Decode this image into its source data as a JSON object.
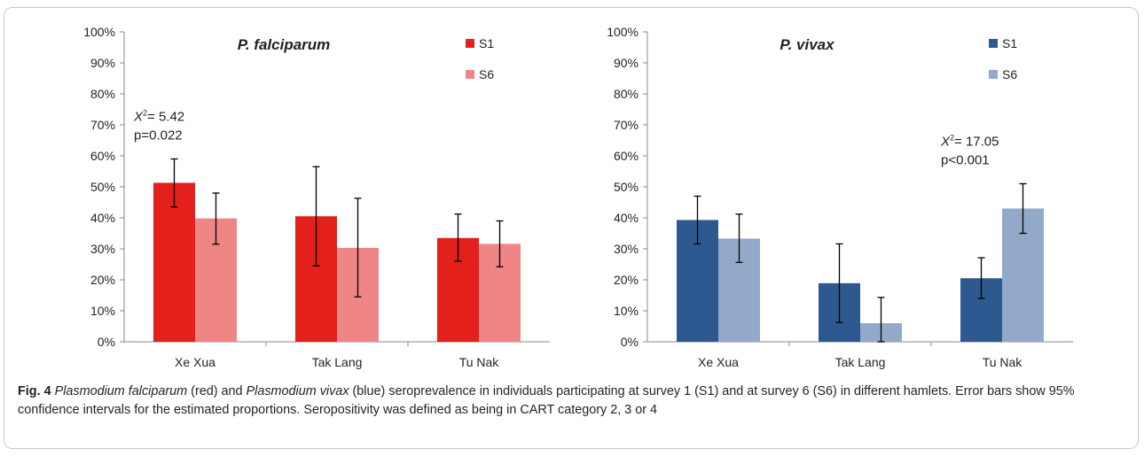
{
  "chart_data": [
    {
      "type": "bar",
      "title": "P. falciparum",
      "categories": [
        "Xe Xua",
        "Tak Lang",
        "Tu Nak"
      ],
      "yticks": [
        "0%",
        "10%",
        "20%",
        "30%",
        "40%",
        "50%",
        "60%",
        "70%",
        "80%",
        "90%",
        "100%"
      ],
      "ylim": [
        0,
        100
      ],
      "series": [
        {
          "name": "S1",
          "color": "#e3201b",
          "values": [
            51.3,
            40.5,
            33.5
          ],
          "ci_low": [
            43.5,
            24.5,
            26.0
          ],
          "ci_high": [
            59.0,
            56.5,
            41.2
          ]
        },
        {
          "name": "S6",
          "color": "#f08585",
          "values": [
            39.8,
            30.3,
            31.6
          ],
          "ci_low": [
            31.5,
            14.5,
            24.2
          ],
          "ci_high": [
            48.0,
            46.3,
            39.0
          ]
        }
      ],
      "annotation": {
        "stat_symbol": "X",
        "stat_exp": "2",
        "stat_value": "= 5.42",
        "p": "p=0.022",
        "category_index": 0
      }
    },
    {
      "type": "bar",
      "title": "P. vivax",
      "categories": [
        "Xe Xua",
        "Tak Lang",
        "Tu Nak"
      ],
      "yticks": [
        "0%",
        "10%",
        "20%",
        "30%",
        "40%",
        "50%",
        "60%",
        "70%",
        "80%",
        "90%",
        "100%"
      ],
      "ylim": [
        0,
        100
      ],
      "series": [
        {
          "name": "S1",
          "color": "#2e5890",
          "values": [
            39.3,
            18.9,
            20.5
          ],
          "ci_low": [
            31.6,
            6.2,
            14.0
          ],
          "ci_high": [
            47.0,
            31.6,
            27.1
          ]
        },
        {
          "name": "S6",
          "color": "#93a9c9",
          "values": [
            33.3,
            6.0,
            43.0
          ],
          "ci_low": [
            25.6,
            0.0,
            35.0
          ],
          "ci_high": [
            41.2,
            14.3,
            51.0
          ]
        }
      ],
      "annotation": {
        "stat_symbol": "X",
        "stat_exp": "2",
        "stat_value": "= 17.05",
        "p": "p<0.001",
        "category_index": 2
      }
    }
  ],
  "caption": {
    "fig_num": "Fig. 4",
    "species1": "Plasmodium falciparum",
    "text1": " (red) and ",
    "species2": "Plasmodium vivax",
    "text2": " (blue) seroprevalence in individuals participating at survey 1 (S1) and at survey 6 (S6) in different hamlets. Error bars show 95% confidence intervals for the estimated proportions. Seropositivity was defined as being in CART category 2, 3 or 4"
  }
}
